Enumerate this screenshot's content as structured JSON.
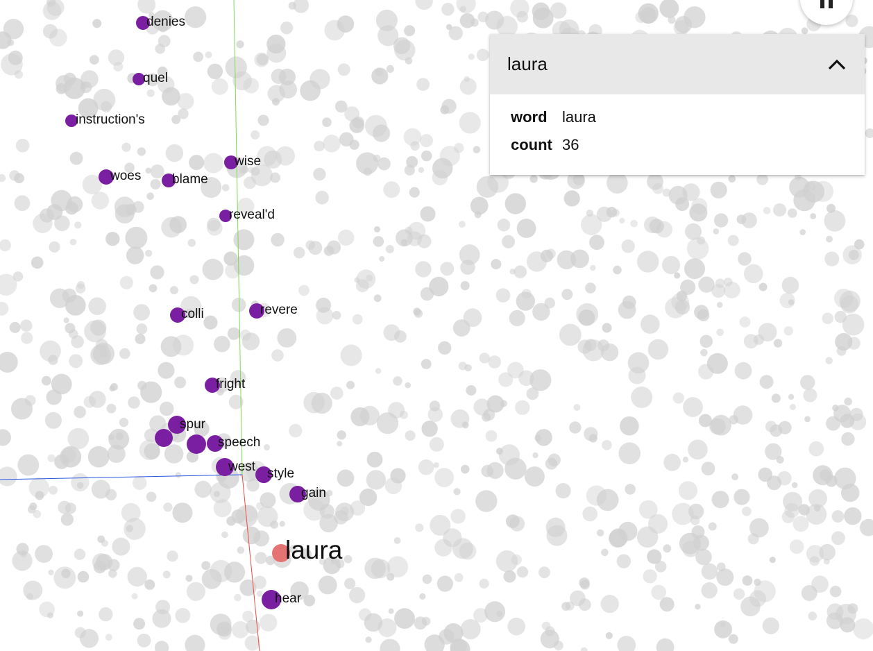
{
  "colors": {
    "background": "#ffffff",
    "neighbor_point": "#7b1fa2",
    "selected_point": "#e57373",
    "other_point": "#d0d0d0",
    "axis_x": "#e74c3c",
    "axis_y": "#7ed957",
    "axis_z": "#2a54e0",
    "panel_header": "#e8e8e8"
  },
  "inspector": {
    "title": "laura",
    "collapse_icon": "chevron-up-icon",
    "properties": [
      {
        "key": "word",
        "value": "laura"
      },
      {
        "key": "count",
        "value": "36"
      }
    ]
  },
  "top_button_icon": "pause-icon",
  "selected_word": "laura",
  "neighbor_words": [
    "denies",
    "quel",
    "instruction's",
    "wise",
    "woes",
    "blame",
    "reveal'd",
    "colli",
    "revere",
    "fright",
    "spur",
    "speech",
    "west",
    "style",
    "gain",
    "hear"
  ]
}
